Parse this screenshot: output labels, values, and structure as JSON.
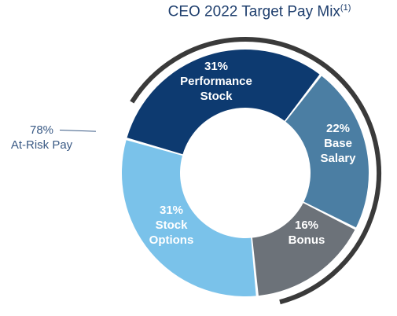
{
  "chart_data": {
    "type": "pie",
    "title": "CEO 2022 Target Pay Mix",
    "title_footnote": "(1)",
    "donut": true,
    "slices": [
      {
        "percent_label": "31%",
        "name_lines": [
          "Performance",
          "Stock"
        ],
        "value": 31,
        "color": "#0d3a70"
      },
      {
        "percent_label": "22%",
        "name_lines": [
          "Base",
          "Salary"
        ],
        "value": 22,
        "color": "#4b7ea3"
      },
      {
        "percent_label": "16%",
        "name_lines": [
          "Bonus"
        ],
        "value": 16,
        "color": "#6c7279"
      },
      {
        "percent_label": "31%",
        "name_lines": [
          "Stock",
          "Options"
        ],
        "value": 31,
        "color": "#7ac2ea"
      }
    ],
    "annotation": {
      "lines": [
        "78%",
        "At-Risk Pay"
      ],
      "color": "#3a5a85"
    },
    "arc_color": "#3a3a3a"
  }
}
